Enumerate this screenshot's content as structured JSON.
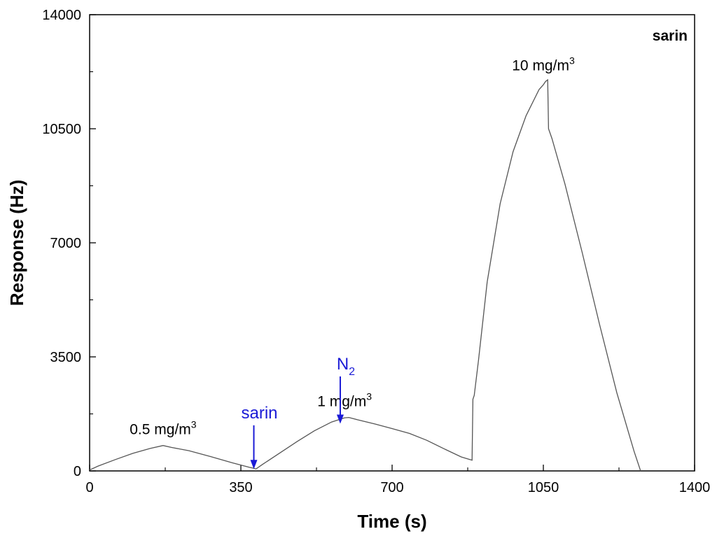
{
  "chart_data": {
    "type": "line",
    "title": "",
    "xlabel": "Time (s)",
    "ylabel": "Response (Hz)",
    "xlim": [
      0,
      1400
    ],
    "ylim": [
      0,
      14000
    ],
    "xticks": [
      0,
      350,
      700,
      1050,
      1400
    ],
    "yticks": [
      0,
      3500,
      7000,
      10500,
      14000
    ],
    "legend": "sarin",
    "series": [
      {
        "name": "sarin",
        "color": "#555555",
        "x": [
          0,
          20,
          60,
          100,
          140,
          170,
          190,
          230,
          280,
          330,
          370,
          380,
          385,
          400,
          440,
          480,
          520,
          560,
          590,
          600,
          620,
          660,
          700,
          740,
          780,
          820,
          860,
          880,
          885,
          887,
          890,
          900,
          920,
          950,
          980,
          1010,
          1040,
          1050,
          1055,
          1060,
          1062,
          1070,
          1100,
          1140,
          1180,
          1220,
          1260,
          1275
        ],
        "y": [
          30,
          150,
          350,
          540,
          690,
          780,
          720,
          620,
          440,
          250,
          110,
          80,
          60,
          200,
          550,
          900,
          1230,
          1500,
          1630,
          1640,
          1570,
          1440,
          1300,
          1150,
          940,
          680,
          430,
          350,
          330,
          2200,
          2320,
          3400,
          5800,
          8200,
          9800,
          10900,
          11700,
          11850,
          11950,
          12000,
          10500,
          10200,
          8800,
          6700,
          4500,
          2400,
          600,
          0
        ]
      }
    ],
    "annotations": [
      {
        "text": "0.5 mg/m",
        "sup": "3",
        "x": 170,
        "y": 780
      },
      {
        "text": "1 mg/m",
        "sup": "3",
        "x": 590,
        "y": 1640
      },
      {
        "text": "10 mg/m",
        "sup": "3",
        "x": 1050,
        "y": 11950
      }
    ],
    "arrows": [
      {
        "label": "sarin",
        "sub": "",
        "x": 380,
        "y_from": 1400,
        "y_to": 60,
        "color": "#1a1ad6"
      },
      {
        "label": "N",
        "sub": "2",
        "x": 580,
        "y_from": 2900,
        "y_to": 1450,
        "color": "#1a1ad6"
      }
    ]
  }
}
